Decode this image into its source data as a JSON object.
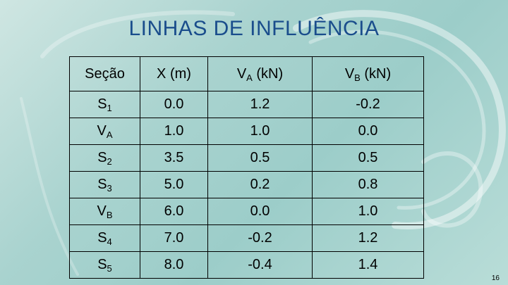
{
  "slide": {
    "title": "LINHAS DE INFLUÊNCIA",
    "page_number": "16"
  },
  "table": {
    "headers": [
      {
        "main": "Seção",
        "sub": "",
        "tail": ""
      },
      {
        "main": "X (m)",
        "sub": "",
        "tail": ""
      },
      {
        "main": "V",
        "sub": "A",
        "tail": " (kN)"
      },
      {
        "main": "V",
        "sub": "B",
        "tail": " (kN)"
      }
    ],
    "rows": [
      {
        "secao": "S",
        "secao_sub": "1",
        "x": "0.0",
        "va": "1.2",
        "vb": "-0.2"
      },
      {
        "secao": "V",
        "secao_sub": "A",
        "x": "1.0",
        "va": "1.0",
        "vb": "0.0"
      },
      {
        "secao": "S",
        "secao_sub": "2",
        "x": "3.5",
        "va": "0.5",
        "vb": "0.5"
      },
      {
        "secao": "S",
        "secao_sub": "3",
        "x": "5.0",
        "va": "0.2",
        "vb": "0.8"
      },
      {
        "secao": "V",
        "secao_sub": "B",
        "x": "6.0",
        "va": "0.0",
        "vb": "1.0"
      },
      {
        "secao": "S",
        "secao_sub": "4",
        "x": "7.0",
        "va": "-0.2",
        "vb": "1.2"
      },
      {
        "secao": "S",
        "secao_sub": "5",
        "x": "8.0",
        "va": "-0.4",
        "vb": "1.4"
      }
    ]
  }
}
